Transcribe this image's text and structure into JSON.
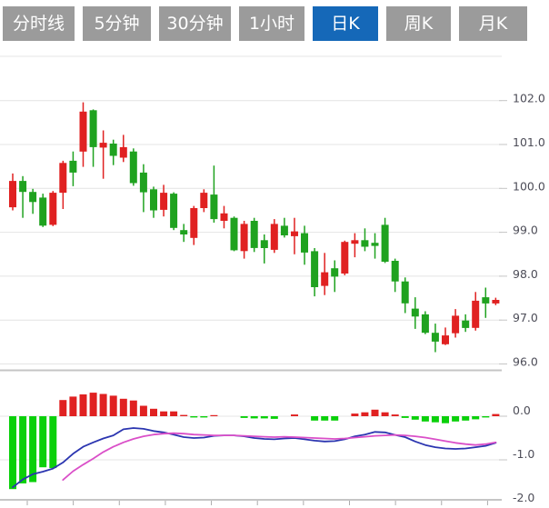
{
  "tabs": {
    "items": [
      {
        "label": "分时线",
        "active": false
      },
      {
        "label": "5分钟",
        "active": false
      },
      {
        "label": "30分钟",
        "active": false
      },
      {
        "label": "1小时",
        "active": false
      },
      {
        "label": "日K",
        "active": true
      },
      {
        "label": "周K",
        "active": false
      },
      {
        "label": "月K",
        "active": false
      }
    ]
  },
  "colors": {
    "up": "#e02121",
    "down": "#1fa21f",
    "macd_up": "#e02121",
    "macd_down": "#0ad00a",
    "dif_line": "#2b35b0",
    "dea_line": "#da4fc8",
    "tab_bg": "#9b9b9b",
    "tab_active_bg": "#1568b8",
    "tab_text": "#ffffff",
    "grid": "#e4e4e4",
    "axis": "#c5c5c5",
    "label_text": "#4d4d58",
    "background": "#ffffff"
  },
  "chart_data": {
    "type": "candlestick",
    "subpanel": "MACD",
    "title": "",
    "price_axis": {
      "side": "right",
      "ticks": [
        102.0,
        101.0,
        100.0,
        99.0,
        98.0,
        97.0,
        96.0
      ],
      "ylim": [
        95.8,
        102.4
      ]
    },
    "macd_axis": {
      "side": "right",
      "ticks": [
        0.0,
        -1.0,
        -2.0
      ],
      "ylim": [
        0.7,
        -2.0
      ]
    },
    "grid": true,
    "legend": "none",
    "candles_ohlc": [
      [
        99.57,
        100.34,
        99.5,
        100.17
      ],
      [
        100.17,
        100.28,
        99.33,
        99.92
      ],
      [
        99.92,
        99.99,
        99.42,
        99.69
      ],
      [
        99.79,
        99.88,
        99.12,
        99.15
      ],
      [
        99.17,
        99.94,
        99.14,
        99.9
      ],
      [
        99.9,
        100.63,
        99.53,
        100.58
      ],
      [
        100.63,
        100.84,
        100.05,
        100.36
      ],
      [
        100.84,
        101.96,
        100.49,
        101.75
      ],
      [
        101.78,
        101.8,
        100.49,
        100.94
      ],
      [
        100.93,
        101.32,
        100.22,
        101.04
      ],
      [
        101.02,
        101.11,
        100.53,
        100.74
      ],
      [
        100.7,
        101.22,
        100.6,
        100.94
      ],
      [
        100.84,
        100.91,
        100.06,
        100.12
      ],
      [
        100.36,
        100.55,
        99.46,
        99.91
      ],
      [
        99.98,
        100.04,
        99.33,
        99.5
      ],
      [
        99.51,
        100.08,
        99.36,
        99.9
      ],
      [
        99.88,
        99.91,
        99.05,
        99.1
      ],
      [
        99.05,
        99.19,
        98.78,
        98.95
      ],
      [
        98.87,
        99.6,
        98.71,
        99.55
      ],
      [
        99.55,
        99.98,
        99.46,
        99.9
      ],
      [
        99.86,
        100.52,
        99.22,
        99.3
      ],
      [
        99.26,
        99.6,
        99.09,
        99.43
      ],
      [
        99.33,
        99.36,
        98.57,
        98.59
      ],
      [
        98.57,
        99.26,
        98.4,
        99.19
      ],
      [
        99.26,
        99.33,
        98.55,
        98.64
      ],
      [
        98.82,
        98.95,
        98.29,
        98.64
      ],
      [
        98.6,
        99.3,
        98.53,
        99.19
      ],
      [
        99.15,
        99.33,
        98.88,
        98.93
      ],
      [
        98.91,
        99.33,
        98.5,
        99.02
      ],
      [
        98.98,
        99.15,
        98.26,
        98.54
      ],
      [
        98.57,
        98.64,
        97.54,
        97.75
      ],
      [
        97.78,
        98.53,
        97.57,
        98.09
      ],
      [
        98.18,
        98.36,
        97.64,
        97.99
      ],
      [
        98.06,
        98.81,
        98.02,
        98.78
      ],
      [
        98.74,
        98.98,
        98.43,
        98.82
      ],
      [
        98.82,
        99.09,
        98.57,
        98.67
      ],
      [
        98.76,
        98.98,
        98.4,
        98.69
      ],
      [
        99.17,
        99.33,
        98.3,
        98.33
      ],
      [
        98.35,
        98.4,
        97.64,
        97.88
      ],
      [
        97.88,
        97.97,
        97.16,
        97.38
      ],
      [
        97.26,
        97.52,
        96.8,
        97.08
      ],
      [
        97.13,
        97.2,
        96.68,
        96.71
      ],
      [
        96.71,
        96.92,
        96.27,
        96.51
      ],
      [
        96.45,
        96.83,
        96.43,
        96.65
      ],
      [
        96.7,
        97.25,
        96.6,
        97.1
      ],
      [
        96.99,
        97.13,
        96.73,
        96.82
      ],
      [
        96.82,
        97.64,
        96.76,
        97.44
      ],
      [
        97.52,
        97.74,
        97.05,
        97.38
      ],
      [
        97.38,
        97.51,
        97.34,
        97.46
      ]
    ],
    "macd": {
      "histogram": [
        -1.67,
        -1.54,
        -1.51,
        -1.17,
        -1.19,
        0.37,
        0.45,
        0.5,
        0.54,
        0.51,
        0.47,
        0.4,
        0.36,
        0.24,
        0.17,
        0.11,
        0.11,
        0.03,
        -0.03,
        -0.03,
        0.02,
        0,
        0,
        -0.04,
        -0.05,
        -0.05,
        -0.06,
        0,
        0.04,
        0,
        -0.1,
        -0.1,
        -0.1,
        0,
        0.06,
        0.09,
        0.15,
        0.09,
        0.04,
        -0.04,
        -0.08,
        -0.12,
        -0.14,
        -0.16,
        -0.12,
        -0.1,
        -0.07,
        -0.03,
        0.05
      ],
      "dif": [
        -1.63,
        -1.45,
        -1.33,
        -1.27,
        -1.2,
        -1.06,
        -0.86,
        -0.7,
        -0.6,
        -0.51,
        -0.44,
        -0.3,
        -0.27,
        -0.29,
        -0.34,
        -0.37,
        -0.42,
        -0.48,
        -0.5,
        -0.49,
        -0.45,
        -0.44,
        -0.44,
        -0.46,
        -0.5,
        -0.52,
        -0.53,
        -0.51,
        -0.5,
        -0.53,
        -0.56,
        -0.58,
        -0.57,
        -0.53,
        -0.46,
        -0.42,
        -0.36,
        -0.37,
        -0.43,
        -0.48,
        -0.58,
        -0.66,
        -0.71,
        -0.74,
        -0.75,
        -0.74,
        -0.71,
        -0.68,
        -0.61
      ],
      "dea": [
        null,
        null,
        null,
        null,
        null,
        -1.46,
        -1.26,
        -1.11,
        -0.97,
        -0.82,
        -0.7,
        -0.6,
        -0.52,
        -0.46,
        -0.42,
        -0.4,
        -0.39,
        -0.4,
        -0.42,
        -0.43,
        -0.44,
        -0.44,
        -0.44,
        -0.45,
        -0.46,
        -0.47,
        -0.48,
        -0.47,
        -0.48,
        -0.49,
        -0.5,
        -0.51,
        -0.52,
        -0.51,
        -0.49,
        -0.47,
        -0.45,
        -0.44,
        -0.43,
        -0.44,
        -0.46,
        -0.49,
        -0.53,
        -0.57,
        -0.61,
        -0.64,
        -0.66,
        -0.64,
        -0.6
      ]
    },
    "up_means": "rise (red)",
    "down_means": "fall (green)"
  }
}
